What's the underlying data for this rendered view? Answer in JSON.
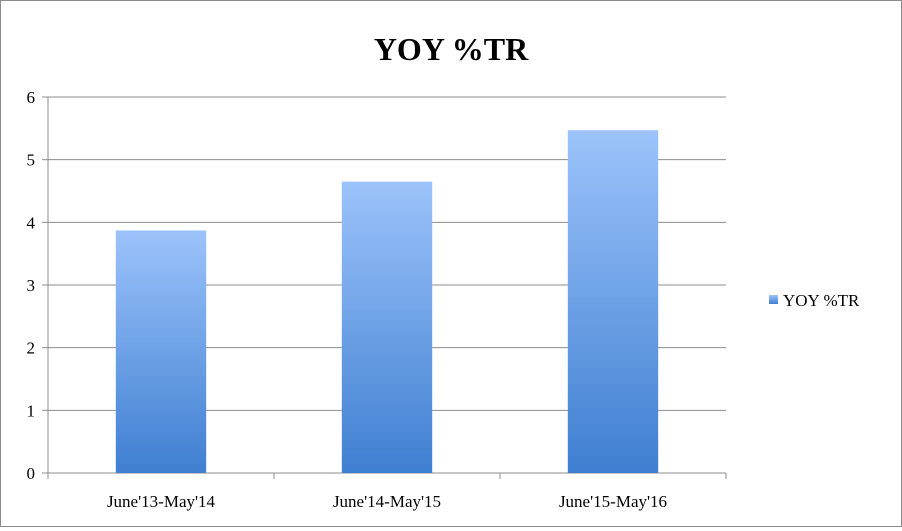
{
  "chart_data": {
    "type": "bar",
    "title": "YOY %TR",
    "categories": [
      "June'13-May'14",
      "June'14-May'15",
      "June'15-May'16"
    ],
    "series": [
      {
        "name": "YOY %TR",
        "values": [
          3.87,
          4.65,
          5.47
        ]
      }
    ],
    "ylim": [
      0,
      6
    ],
    "yticks": [
      "0",
      "1",
      "2",
      "3",
      "4",
      "5",
      "6"
    ],
    "grid": true,
    "legend_position": "right",
    "colors": {
      "bar_top": "#9cc3fb",
      "bar_bottom": "#3f7fd1",
      "grid": "#8c8c8c",
      "axis": "#8c8c8c"
    }
  }
}
